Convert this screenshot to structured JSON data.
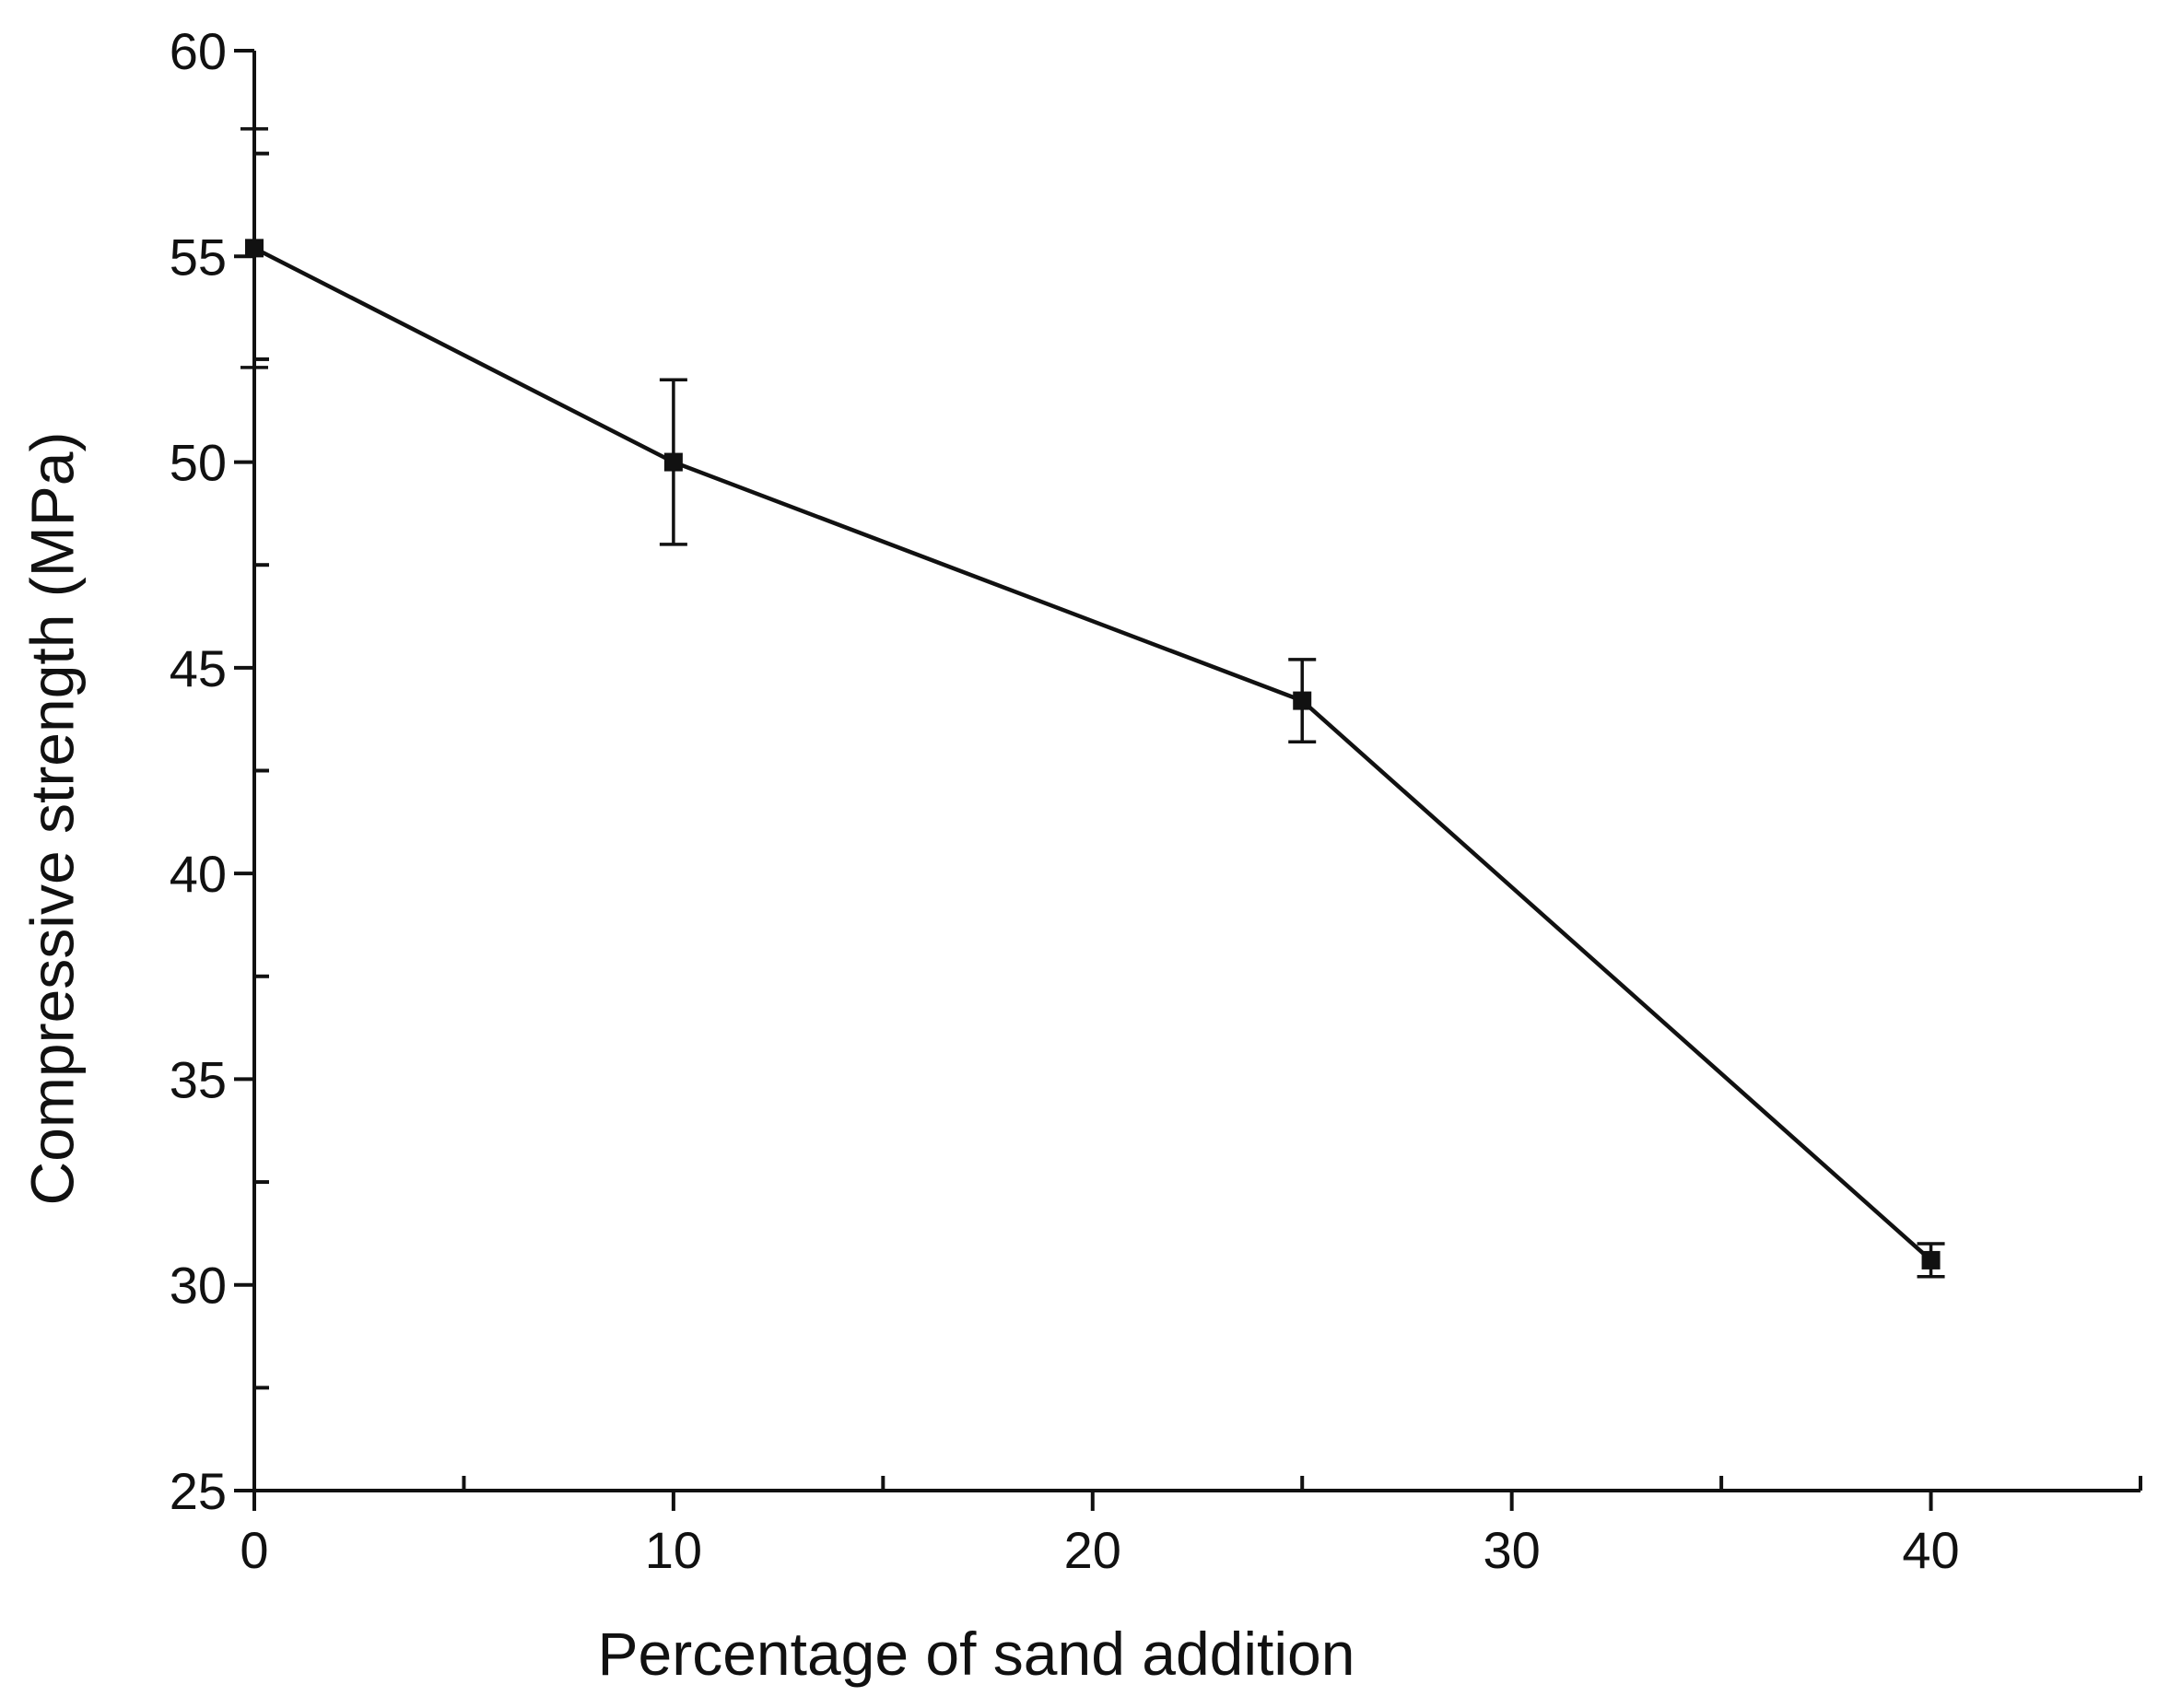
{
  "chart_data": {
    "type": "line",
    "title": "",
    "xlabel": "Percentage of sand addition",
    "ylabel": "Compressive strength (MPa)",
    "xlim": [
      0,
      45
    ],
    "ylim": [
      25,
      60
    ],
    "x_ticks": [
      0,
      10,
      20,
      30,
      40
    ],
    "y_ticks": [
      25,
      30,
      35,
      40,
      45,
      50,
      55,
      60
    ],
    "x_tick_labels": [
      "0",
      "10",
      "20",
      "30",
      "40"
    ],
    "y_tick_labels": [
      "25",
      "30",
      "35",
      "40",
      "45",
      "50",
      "55",
      "60"
    ],
    "grid": false,
    "legend": "none",
    "series": [
      {
        "x": [
          0,
          10,
          25,
          40
        ],
        "y": [
          55.2,
          50.0,
          44.2,
          30.6
        ],
        "error": [
          2.9,
          2.0,
          1.0,
          0.4
        ],
        "marker": "square",
        "color": "#111111"
      }
    ]
  }
}
